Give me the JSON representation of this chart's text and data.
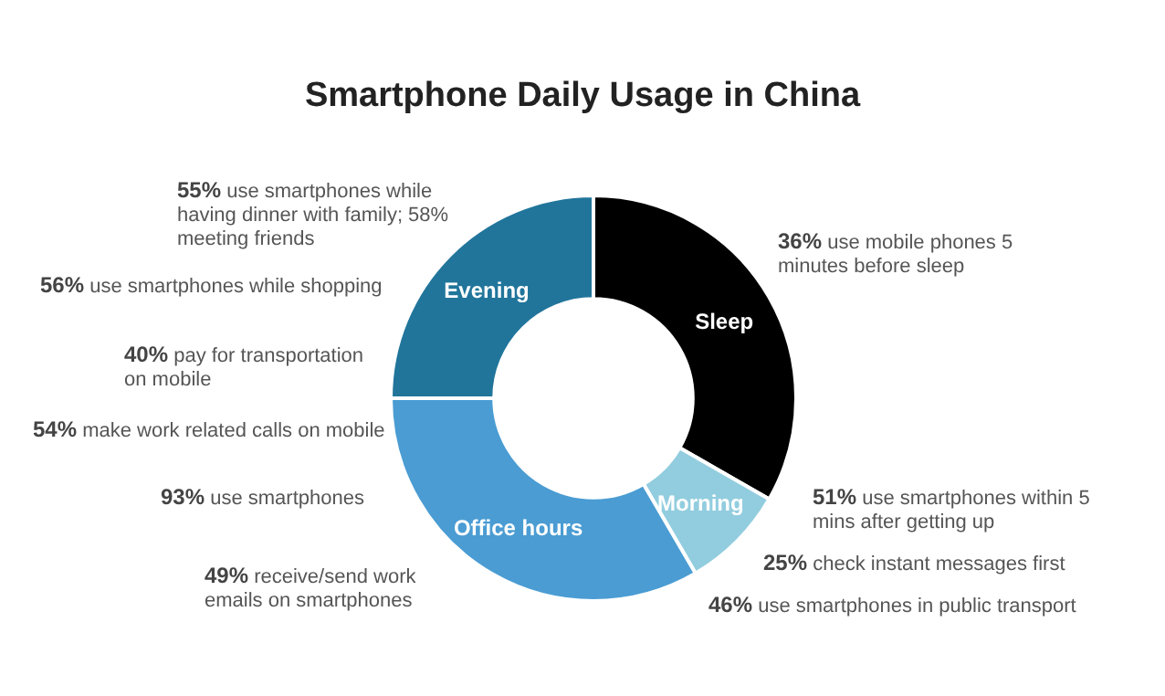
{
  "chart_data": {
    "type": "donut",
    "title": "Smartphone Daily Usage in China",
    "categories": [
      "Sleep",
      "Morning",
      "Office hours",
      "Evening"
    ],
    "values": [
      33.3,
      8.3,
      33.4,
      25
    ],
    "colors": [
      "#000000",
      "#92cddf",
      "#4a9cd3",
      "#21759b"
    ],
    "legend": false,
    "annotations": [
      "55% use smartphones while having dinner with family; 58% meeting friends",
      "56% use smartphones while shopping",
      "40% pay for transportation on mobile",
      "54% make work related calls on mobile",
      "93% use smartphones",
      "49% receive/send work emails on smartphones",
      "36% use mobile phones 5 minutes before sleep",
      "51% use smartphones within 5 mins after getting up",
      "25% check instant messages first",
      "46% use smartphones in public transport"
    ]
  }
}
